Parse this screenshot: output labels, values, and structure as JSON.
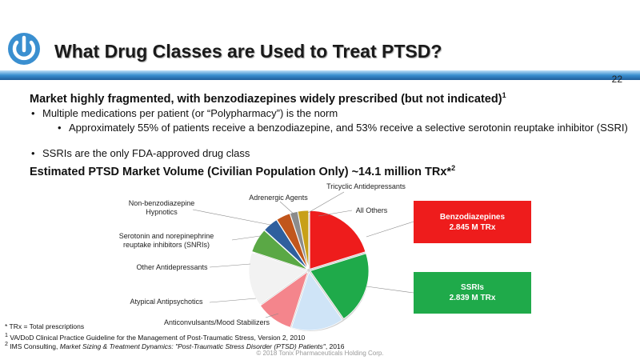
{
  "colors": {
    "header_blue": "#3a8fd0",
    "benzo_red": "#ee1c1c",
    "ssri_green": "#1faa4a"
  },
  "logo": {
    "icon": "power-icon"
  },
  "title": "What Drug Classes are Used to Treat PTSD?",
  "page_number": "22",
  "subhead": {
    "text": "Market highly fragmented, with benzodiazepines widely prescribed (but not indicated)",
    "sup": "1"
  },
  "bullets": {
    "b1": "Multiple medications per patient (or “Polypharmacy”) is the norm",
    "b2": "Approximately 55% of patients receive a benzodiazepine, and 53% receive a selective serotonin reuptake inhibitor (SSRI)",
    "b3": "SSRIs are the only FDA-approved drug class",
    "marker": "•"
  },
  "market_head": {
    "text": "Estimated PTSD Market Volume (Civilian Population Only) ~14.1 million TRx*",
    "sup": "2"
  },
  "pie_labels": {
    "non_benzo": [
      "Non-benzodiazepine",
      "Hypnotics"
    ],
    "adrenergic": "Adrenergic Agents",
    "tricyclic": "Tricyclic Antidepressants",
    "all_others": "All Others",
    "snri": [
      "Serotonin and norepinephrine",
      "reuptake inhibitors (SNRIs)"
    ],
    "other_antidep": "Other Antidepressants",
    "atypical": "Atypical Antipsychotics",
    "anticonvulsants": "Anticonvulsants/Mood Stabilizers"
  },
  "callouts": {
    "benzo": [
      "Benzodiazepines",
      "2.845 M TRx"
    ],
    "ssri": [
      "SSRIs",
      "2.839 M TRx"
    ]
  },
  "chart_data": {
    "type": "pie",
    "start_angle_deg": 0,
    "slices": [
      {
        "name": "Benzodiazepines",
        "value": 2.845,
        "color": "#ee1c1c"
      },
      {
        "name": "SSRIs",
        "value": 2.839,
        "color": "#1faa4a"
      },
      {
        "name": "Anticonvulsants/Mood Stabilizers",
        "value": 2.05,
        "color": "#cfe4f7"
      },
      {
        "name": "Atypical Antipsychotics",
        "value": 1.45,
        "color": "#f4858c"
      },
      {
        "name": "Other Antidepressants",
        "value": 2.1,
        "color": "#f2f2f2"
      },
      {
        "name": "Serotonin and norepinephrine reuptake inhibitors (SNRIs)",
        "value": 0.95,
        "color": "#5aa845"
      },
      {
        "name": "Non-benzodiazepine Hypnotics",
        "value": 0.6,
        "color": "#2f5f9e"
      },
      {
        "name": "Adrenergic Agents",
        "value": 0.55,
        "color": "#c1561c"
      },
      {
        "name": "Tricyclic Antidepressants",
        "value": 0.3,
        "color": "#8c8c8c"
      },
      {
        "name": "All Others",
        "value": 0.42,
        "color": "#c8a018"
      }
    ]
  },
  "footnotes": {
    "f1": "* TRx = Total prescriptions",
    "f2_sup": "1",
    "f2": "VA/DoD Clinical Practice Guideline for the Management of Post-Traumatic Stress, Version 2, 2010",
    "f3_sup": "2",
    "f3_a": "IMS Consulting, ",
    "f3_b": "Market Sizing & Treatment Dynamics: \"Post-Traumatic Stress Disorder (PTSD) Patients\"",
    "f3_c": ", 2016"
  },
  "copyright": "© 2018 Tonix Pharmaceuticals Holding Corp."
}
